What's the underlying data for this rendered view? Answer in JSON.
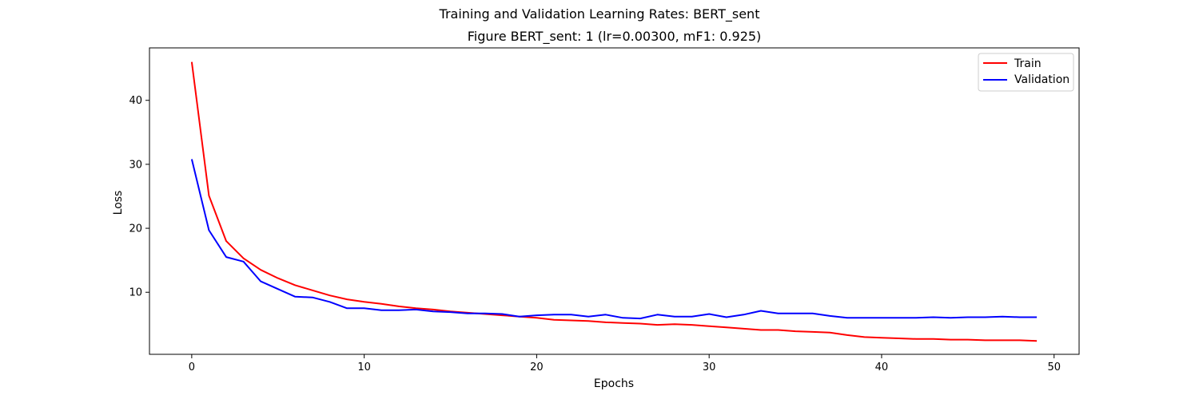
{
  "chart_data": {
    "type": "line",
    "suptitle": "Training and Validation Learning Rates: BERT_sent",
    "title": "Figure BERT_sent: 1 (lr=0.00300, mF1: 0.925)",
    "xlabel": "Epochs",
    "ylabel": "Loss",
    "xlim": [
      -2.45,
      51.45
    ],
    "ylim": [
      0.3,
      48.2
    ],
    "xticks": [
      0,
      10,
      20,
      30,
      40,
      50
    ],
    "yticks": [
      10,
      20,
      30,
      40
    ],
    "grid": false,
    "legend_position": "top-right",
    "x": [
      0,
      1,
      2,
      3,
      4,
      5,
      6,
      7,
      8,
      9,
      10,
      11,
      12,
      13,
      14,
      15,
      16,
      17,
      18,
      19,
      20,
      21,
      22,
      23,
      24,
      25,
      26,
      27,
      28,
      29,
      30,
      31,
      32,
      33,
      34,
      35,
      36,
      37,
      38,
      39,
      40,
      41,
      42,
      43,
      44,
      45,
      46,
      47,
      48,
      49
    ],
    "series": [
      {
        "name": "Train",
        "color": "#ff0000",
        "values": [
          46.0,
          25.1,
          18.0,
          15.3,
          13.5,
          12.2,
          11.1,
          10.3,
          9.5,
          8.9,
          8.5,
          8.2,
          7.8,
          7.5,
          7.3,
          7.0,
          6.8,
          6.6,
          6.4,
          6.2,
          6.0,
          5.7,
          5.6,
          5.5,
          5.3,
          5.2,
          5.1,
          4.9,
          5.0,
          4.9,
          4.7,
          4.5,
          4.3,
          4.1,
          4.1,
          3.9,
          3.8,
          3.7,
          3.3,
          3.0,
          2.9,
          2.8,
          2.7,
          2.7,
          2.6,
          2.6,
          2.5,
          2.5,
          2.5,
          2.4
        ]
      },
      {
        "name": "Validation",
        "color": "#0000ff",
        "values": [
          30.8,
          19.7,
          15.5,
          14.8,
          11.7,
          10.5,
          9.3,
          9.2,
          8.5,
          7.5,
          7.5,
          7.2,
          7.2,
          7.3,
          7.0,
          6.9,
          6.7,
          6.7,
          6.6,
          6.2,
          6.4,
          6.5,
          6.5,
          6.2,
          6.5,
          6.0,
          5.9,
          6.5,
          6.2,
          6.2,
          6.6,
          6.1,
          6.5,
          7.1,
          6.7,
          6.7,
          6.7,
          6.3,
          6.0,
          6.0,
          6.0,
          6.0,
          6.0,
          6.1,
          6.0,
          6.1,
          6.1,
          6.2,
          6.1,
          6.1
        ]
      }
    ]
  }
}
